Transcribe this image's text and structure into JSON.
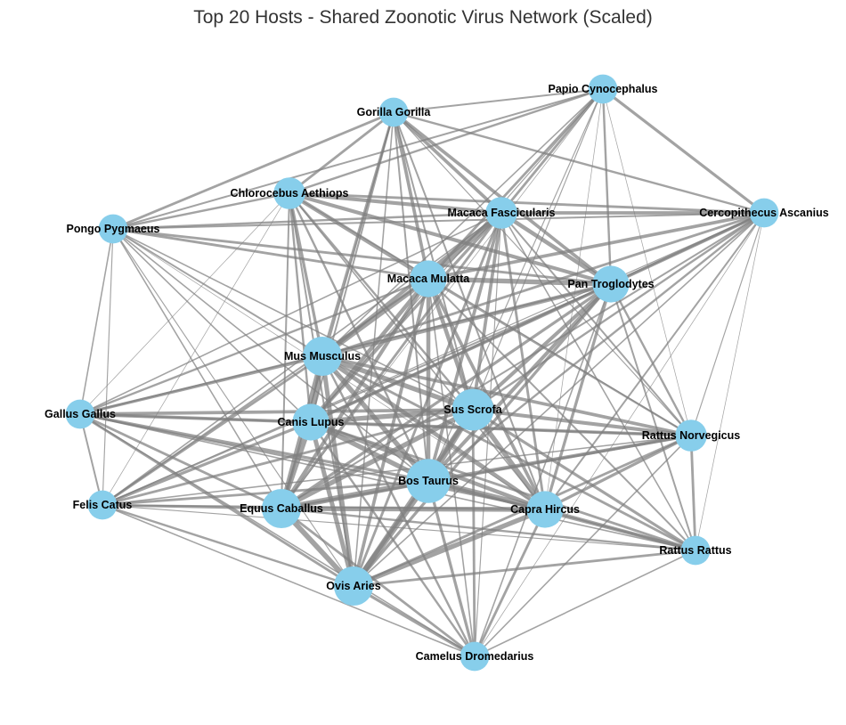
{
  "title": "Top 20 Hosts - Shared Zoonotic Virus Network (Scaled)",
  "colors": {
    "node": "#87CEEB",
    "edge": "#808080",
    "label": "#000000",
    "title": "#333333"
  },
  "nodes": [
    {
      "id": "papio",
      "label": "Papio Cynocephalus",
      "size": 3
    },
    {
      "id": "gorilla",
      "label": "Gorilla Gorilla",
      "size": 3
    },
    {
      "id": "chloro",
      "label": "Chlorocebus Aethiops",
      "size": 3.5
    },
    {
      "id": "pongo",
      "label": "Pongo Pygmaeus",
      "size": 3
    },
    {
      "id": "macfas",
      "label": "Macaca Fascicularis",
      "size": 3.5
    },
    {
      "id": "cerco",
      "label": "Cercopithecus Ascanius",
      "size": 3
    },
    {
      "id": "macmul",
      "label": "Macaca Mulatta",
      "size": 4.5
    },
    {
      "id": "pan",
      "label": "Pan Troglodytes",
      "size": 4.5
    },
    {
      "id": "mus",
      "label": "Mus Musculus",
      "size": 5
    },
    {
      "id": "gallus",
      "label": "Gallus Gallus",
      "size": 3
    },
    {
      "id": "canis",
      "label": "Canis Lupus",
      "size": 4.5
    },
    {
      "id": "sus",
      "label": "Sus Scrofa",
      "size": 5.5
    },
    {
      "id": "rnorv",
      "label": "Rattus Norvegicus",
      "size": 3.5
    },
    {
      "id": "felis",
      "label": "Felis Catus",
      "size": 3
    },
    {
      "id": "equus",
      "label": "Equus Caballus",
      "size": 5
    },
    {
      "id": "bos",
      "label": "Bos Taurus",
      "size": 6
    },
    {
      "id": "capra",
      "label": "Capra Hircus",
      "size": 4.5
    },
    {
      "id": "rrat",
      "label": "Rattus Rattus",
      "size": 3
    },
    {
      "id": "ovis",
      "label": "Ovis Aries",
      "size": 5
    },
    {
      "id": "camel",
      "label": "Camelus Dromedarius",
      "size": 3
    }
  ],
  "edges": [
    [
      "papio",
      "gorilla",
      2
    ],
    [
      "papio",
      "chloro",
      2.5
    ],
    [
      "papio",
      "pongo",
      2
    ],
    [
      "papio",
      "macfas",
      3
    ],
    [
      "papio",
      "cerco",
      3.5
    ],
    [
      "papio",
      "macmul",
      3
    ],
    [
      "papio",
      "pan",
      2.5
    ],
    [
      "papio",
      "mus",
      1.5
    ],
    [
      "papio",
      "canis",
      1
    ],
    [
      "papio",
      "sus",
      1
    ],
    [
      "papio",
      "bos",
      1
    ],
    [
      "papio",
      "capra",
      0.5
    ],
    [
      "papio",
      "equus",
      0.5
    ],
    [
      "papio",
      "rnorv",
      0.5
    ],
    [
      "gorilla",
      "chloro",
      3
    ],
    [
      "gorilla",
      "pongo",
      3
    ],
    [
      "gorilla",
      "macfas",
      4
    ],
    [
      "gorilla",
      "cerco",
      2.5
    ],
    [
      "gorilla",
      "macmul",
      4
    ],
    [
      "gorilla",
      "pan",
      4
    ],
    [
      "gorilla",
      "mus",
      3
    ],
    [
      "gorilla",
      "canis",
      2
    ],
    [
      "gorilla",
      "sus",
      2
    ],
    [
      "gorilla",
      "bos",
      2
    ],
    [
      "gorilla",
      "capra",
      2
    ],
    [
      "gorilla",
      "equus",
      1.5
    ],
    [
      "gorilla",
      "ovis",
      1.5
    ],
    [
      "gorilla",
      "rnorv",
      1
    ],
    [
      "chloro",
      "pongo",
      2.5
    ],
    [
      "chloro",
      "macfas",
      4.5
    ],
    [
      "chloro",
      "cerco",
      3
    ],
    [
      "chloro",
      "macmul",
      5
    ],
    [
      "chloro",
      "pan",
      4.5
    ],
    [
      "chloro",
      "mus",
      3.5
    ],
    [
      "chloro",
      "canis",
      2.5
    ],
    [
      "chloro",
      "sus",
      2.5
    ],
    [
      "chloro",
      "bos",
      2.5
    ],
    [
      "chloro",
      "capra",
      1.5
    ],
    [
      "chloro",
      "equus",
      2
    ],
    [
      "chloro",
      "ovis",
      2
    ],
    [
      "chloro",
      "rnorv",
      1
    ],
    [
      "chloro",
      "gallus",
      0.5
    ],
    [
      "chloro",
      "felis",
      0.5
    ],
    [
      "pongo",
      "macfas",
      2.5
    ],
    [
      "pongo",
      "macmul",
      3
    ],
    [
      "pongo",
      "pan",
      3
    ],
    [
      "pongo",
      "mus",
      2
    ],
    [
      "pongo",
      "canis",
      1.5
    ],
    [
      "pongo",
      "sus",
      1.5
    ],
    [
      "pongo",
      "bos",
      1.5
    ],
    [
      "pongo",
      "gallus",
      1.5
    ],
    [
      "pongo",
      "felis",
      1
    ],
    [
      "pongo",
      "equus",
      1.5
    ],
    [
      "pongo",
      "ovis",
      1
    ],
    [
      "pongo",
      "capra",
      0.5
    ],
    [
      "pongo",
      "cerco",
      2
    ],
    [
      "macfas",
      "cerco",
      4
    ],
    [
      "macfas",
      "macmul",
      6
    ],
    [
      "macfas",
      "pan",
      5
    ],
    [
      "macfas",
      "mus",
      4.5
    ],
    [
      "macfas",
      "canis",
      3.5
    ],
    [
      "macfas",
      "sus",
      4
    ],
    [
      "macfas",
      "bos",
      4
    ],
    [
      "macfas",
      "capra",
      3
    ],
    [
      "macfas",
      "equus",
      3
    ],
    [
      "macfas",
      "ovis",
      3
    ],
    [
      "macfas",
      "rnorv",
      2
    ],
    [
      "macfas",
      "rrat",
      1.5
    ],
    [
      "macfas",
      "gallus",
      1.5
    ],
    [
      "macfas",
      "felis",
      1.5
    ],
    [
      "macfas",
      "camel",
      1
    ],
    [
      "cerco",
      "macmul",
      4
    ],
    [
      "cerco",
      "pan",
      4
    ],
    [
      "cerco",
      "mus",
      3
    ],
    [
      "cerco",
      "canis",
      2.5
    ],
    [
      "cerco",
      "sus",
      2.5
    ],
    [
      "cerco",
      "bos",
      2.5
    ],
    [
      "cerco",
      "capra",
      2
    ],
    [
      "cerco",
      "equus",
      2
    ],
    [
      "cerco",
      "ovis",
      1.5
    ],
    [
      "cerco",
      "rnorv",
      1
    ],
    [
      "cerco",
      "rrat",
      0.5
    ],
    [
      "cerco",
      "felis",
      1
    ],
    [
      "cerco",
      "camel",
      0.5
    ],
    [
      "macmul",
      "pan",
      6
    ],
    [
      "macmul",
      "mus",
      6
    ],
    [
      "macmul",
      "canis",
      5
    ],
    [
      "macmul",
      "sus",
      5
    ],
    [
      "macmul",
      "bos",
      5
    ],
    [
      "macmul",
      "capra",
      4
    ],
    [
      "macmul",
      "equus",
      4.5
    ],
    [
      "macmul",
      "ovis",
      4
    ],
    [
      "macmul",
      "rnorv",
      2.5
    ],
    [
      "macmul",
      "rrat",
      2
    ],
    [
      "macmul",
      "gallus",
      2.5
    ],
    [
      "macmul",
      "felis",
      2
    ],
    [
      "macmul",
      "camel",
      1.5
    ],
    [
      "pan",
      "mus",
      5
    ],
    [
      "pan",
      "canis",
      4
    ],
    [
      "pan",
      "sus",
      4.5
    ],
    [
      "pan",
      "bos",
      4.5
    ],
    [
      "pan",
      "capra",
      3.5
    ],
    [
      "pan",
      "equus",
      3.5
    ],
    [
      "pan",
      "ovis",
      3.5
    ],
    [
      "pan",
      "rnorv",
      2.5
    ],
    [
      "pan",
      "rrat",
      2
    ],
    [
      "pan",
      "gallus",
      2
    ],
    [
      "pan",
      "felis",
      2
    ],
    [
      "pan",
      "camel",
      1.5
    ],
    [
      "mus",
      "canis",
      6
    ],
    [
      "mus",
      "sus",
      6
    ],
    [
      "mus",
      "bos",
      6
    ],
    [
      "mus",
      "capra",
      5
    ],
    [
      "mus",
      "equus",
      6
    ],
    [
      "mus",
      "ovis",
      5.5
    ],
    [
      "mus",
      "rnorv",
      4
    ],
    [
      "mus",
      "rrat",
      3
    ],
    [
      "mus",
      "gallus",
      3.5
    ],
    [
      "mus",
      "felis",
      3
    ],
    [
      "mus",
      "camel",
      2.5
    ],
    [
      "gallus",
      "canis",
      4
    ],
    [
      "gallus",
      "sus",
      4
    ],
    [
      "gallus",
      "bos",
      3.5
    ],
    [
      "gallus",
      "capra",
      2.5
    ],
    [
      "gallus",
      "equus",
      3
    ],
    [
      "gallus",
      "ovis",
      3
    ],
    [
      "gallus",
      "felis",
      2
    ],
    [
      "gallus",
      "rnorv",
      2
    ],
    [
      "gallus",
      "rrat",
      1.5
    ],
    [
      "gallus",
      "camel",
      1.5
    ],
    [
      "canis",
      "sus",
      6
    ],
    [
      "canis",
      "bos",
      6
    ],
    [
      "canis",
      "capra",
      5
    ],
    [
      "canis",
      "equus",
      6
    ],
    [
      "canis",
      "ovis",
      5.5
    ],
    [
      "canis",
      "rnorv",
      4
    ],
    [
      "canis",
      "rrat",
      3
    ],
    [
      "canis",
      "felis",
      3.5
    ],
    [
      "canis",
      "camel",
      2.5
    ],
    [
      "sus",
      "bos",
      7
    ],
    [
      "sus",
      "capra",
      6
    ],
    [
      "sus",
      "equus",
      6
    ],
    [
      "sus",
      "ovis",
      6
    ],
    [
      "sus",
      "rnorv",
      4.5
    ],
    [
      "sus",
      "rrat",
      3.5
    ],
    [
      "sus",
      "felis",
      3
    ],
    [
      "sus",
      "camel",
      3
    ],
    [
      "rnorv",
      "bos",
      4
    ],
    [
      "rnorv",
      "capra",
      3.5
    ],
    [
      "rnorv",
      "rrat",
      3
    ],
    [
      "rnorv",
      "equus",
      3
    ],
    [
      "rnorv",
      "ovis",
      3
    ],
    [
      "rnorv",
      "camel",
      1.5
    ],
    [
      "rnorv",
      "felis",
      1.5
    ],
    [
      "felis",
      "equus",
      3
    ],
    [
      "felis",
      "bos",
      3
    ],
    [
      "felis",
      "ovis",
      2.5
    ],
    [
      "felis",
      "capra",
      2
    ],
    [
      "felis",
      "camel",
      1.5
    ],
    [
      "felis",
      "rrat",
      1
    ],
    [
      "equus",
      "bos",
      7
    ],
    [
      "equus",
      "capra",
      6
    ],
    [
      "equus",
      "ovis",
      6.5
    ],
    [
      "equus",
      "rrat",
      2.5
    ],
    [
      "equus",
      "camel",
      3
    ],
    [
      "bos",
      "capra",
      7
    ],
    [
      "bos",
      "ovis",
      7
    ],
    [
      "bos",
      "rrat",
      3.5
    ],
    [
      "bos",
      "camel",
      3.5
    ],
    [
      "capra",
      "ovis",
      6
    ],
    [
      "capra",
      "rrat",
      3.5
    ],
    [
      "capra",
      "camel",
      3
    ],
    [
      "rrat",
      "ovis",
      3
    ],
    [
      "rrat",
      "camel",
      1.5
    ],
    [
      "ovis",
      "camel",
      3.5
    ]
  ]
}
